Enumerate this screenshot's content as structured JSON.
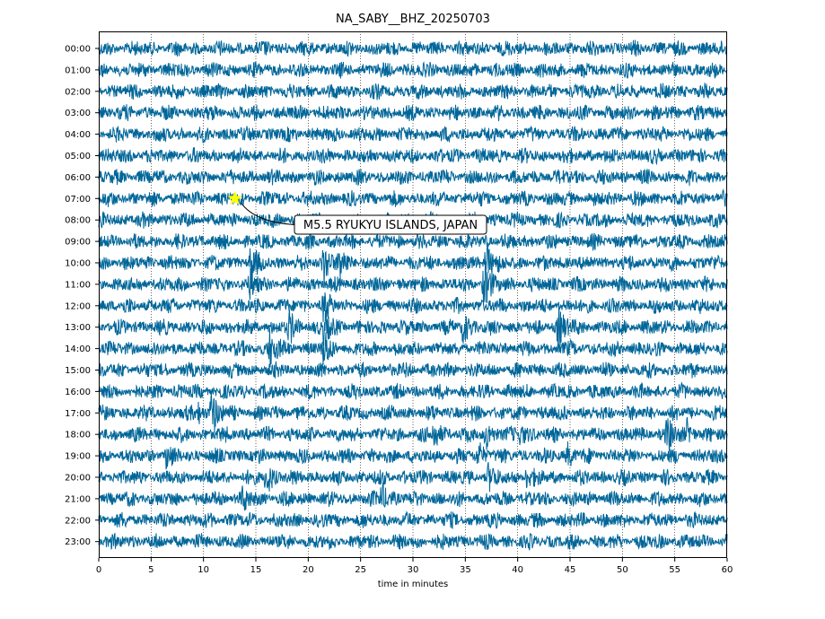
{
  "chart_data": {
    "type": "line",
    "title": "NA_SABY__BHZ_20250703",
    "xlabel": "time in minutes",
    "ylabel": "",
    "xlim": [
      0,
      60
    ],
    "x_ticks": [
      0,
      5,
      10,
      15,
      20,
      25,
      30,
      35,
      40,
      45,
      50,
      55,
      60
    ],
    "x_tick_labels": [
      "0",
      "5",
      "10",
      "15",
      "20",
      "25",
      "30",
      "35",
      "40",
      "45",
      "50",
      "55",
      "60"
    ],
    "grid": "vertical dotted",
    "trace_color": "#006699",
    "rows": [
      "00:00",
      "01:00",
      "02:00",
      "03:00",
      "04:00",
      "05:00",
      "06:00",
      "07:00",
      "08:00",
      "09:00",
      "10:00",
      "11:00",
      "12:00",
      "13:00",
      "14:00",
      "15:00",
      "16:00",
      "17:00",
      "18:00",
      "19:00",
      "20:00",
      "21:00",
      "22:00",
      "23:00"
    ],
    "bursts": [
      {
        "row": "10:00",
        "minute": 14.5,
        "amplitude": 2.2
      },
      {
        "row": "10:00",
        "minute": 21.5,
        "amplitude": 3.6
      },
      {
        "row": "10:00",
        "minute": 23.0,
        "amplitude": 2.2
      },
      {
        "row": "10:00",
        "minute": 37.0,
        "amplitude": 3.6
      },
      {
        "row": "11:00",
        "minute": 14.5,
        "amplitude": 2.0
      },
      {
        "row": "11:00",
        "minute": 36.8,
        "amplitude": 4.2
      },
      {
        "row": "12:00",
        "minute": 21.5,
        "amplitude": 2.2
      },
      {
        "row": "13:00",
        "minute": 18.2,
        "amplitude": 2.2
      },
      {
        "row": "13:00",
        "minute": 21.5,
        "amplitude": 2.6
      },
      {
        "row": "13:00",
        "minute": 34.8,
        "amplitude": 2.6
      },
      {
        "row": "13:00",
        "minute": 43.9,
        "amplitude": 3.6
      },
      {
        "row": "14:00",
        "minute": 16.3,
        "amplitude": 3.2
      },
      {
        "row": "14:00",
        "minute": 21.5,
        "amplitude": 2.8
      },
      {
        "row": "17:00",
        "minute": 10.8,
        "amplitude": 3.6
      },
      {
        "row": "17:00",
        "minute": 9.5,
        "amplitude": 1.6
      },
      {
        "row": "18:00",
        "minute": 32.0,
        "amplitude": 2.2
      },
      {
        "row": "18:00",
        "minute": 37.0,
        "amplitude": 2.2
      },
      {
        "row": "18:00",
        "minute": 40.3,
        "amplitude": 1.8
      },
      {
        "row": "18:00",
        "minute": 54.3,
        "amplitude": 2.8
      },
      {
        "row": "18:00",
        "minute": 56.2,
        "amplitude": 2.0
      },
      {
        "row": "19:00",
        "minute": 6.4,
        "amplitude": 1.6
      },
      {
        "row": "19:00",
        "minute": 36.3,
        "amplitude": 1.8
      },
      {
        "row": "19:00",
        "minute": 44.8,
        "amplitude": 1.6
      },
      {
        "row": "20:00",
        "minute": 16.0,
        "amplitude": 2.6
      },
      {
        "row": "20:00",
        "minute": 37.2,
        "amplitude": 1.8
      },
      {
        "row": "20:00",
        "minute": 40.8,
        "amplitude": 1.6
      },
      {
        "row": "21:00",
        "minute": 13.8,
        "amplitude": 1.6
      },
      {
        "row": "21:00",
        "minute": 27.0,
        "amplitude": 2.6
      }
    ],
    "annotations": [
      {
        "text": "M5.5 RYUKYU ISLANDS, JAPAN",
        "row": "07:00",
        "minute": 13.0,
        "marker": "star",
        "marker_color": "#ffff00"
      }
    ]
  }
}
